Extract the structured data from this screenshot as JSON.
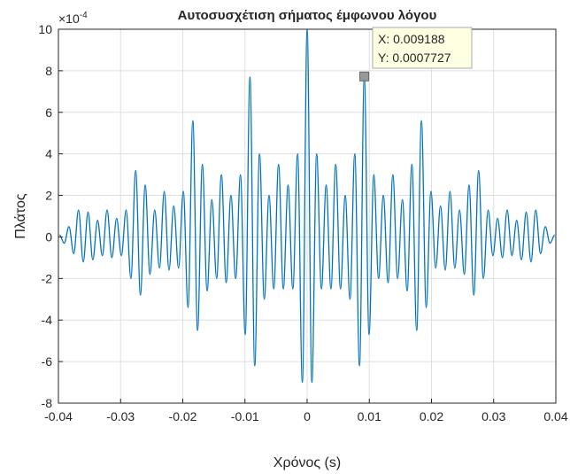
{
  "chart_data": {
    "type": "line",
    "title": "Αυτοσυσχέτιση σήματος έμφωνου λόγου",
    "x_label": "Χρόνος (s)",
    "y_label": "Πλάτος",
    "y_multiplier": "×10",
    "y_exponent": "-4",
    "xlim": [
      -0.04,
      0.04
    ],
    "ylim": [
      -8,
      10
    ],
    "xticks": [
      -0.04,
      -0.03,
      -0.02,
      -0.01,
      0,
      0.01,
      0.02,
      0.03,
      0.04
    ],
    "yticks": [
      -8,
      -6,
      -4,
      -2,
      0,
      2,
      4,
      6,
      8,
      10
    ],
    "grid": true,
    "x": [
      -0.039832,
      -0.039066,
      -0.0383,
      -0.037534,
      -0.036768,
      -0.036002,
      -0.035236,
      -0.03447,
      -0.033704,
      -0.032938,
      -0.032172,
      -0.031406,
      -0.03064,
      -0.029874,
      -0.029108,
      -0.028342,
      -0.027576,
      -0.02681,
      -0.026044,
      -0.025278,
      -0.024512,
      -0.023746,
      -0.02298,
      -0.022214,
      -0.021448,
      -0.020682,
      -0.019916,
      -0.01915,
      -0.018384,
      -0.017618,
      -0.016852,
      -0.016086,
      -0.01532,
      -0.014554,
      -0.013788,
      -0.013022,
      -0.012256,
      -0.01149,
      -0.010724,
      -0.009958,
      -0.009192,
      -0.008426,
      -0.00766,
      -0.006894,
      -0.006128,
      -0.005362,
      -0.004596,
      -0.00383,
      -0.003064,
      -0.002298,
      -0.001532,
      -0.000766,
      0,
      0.000766,
      0.001532,
      0.002298,
      0.003064,
      0.00383,
      0.004596,
      0.005362,
      0.006128,
      0.006894,
      0.00766,
      0.008426,
      0.009192,
      0.009958,
      0.010724,
      0.01149,
      0.012256,
      0.013022,
      0.013788,
      0.014554,
      0.01532,
      0.016086,
      0.016852,
      0.017618,
      0.018384,
      0.01915,
      0.019916,
      0.020682,
      0.021448,
      0.022214,
      0.02298,
      0.023746,
      0.024512,
      0.025278,
      0.026044,
      0.02681,
      0.027576,
      0.028342,
      0.029108,
      0.029874,
      0.03064,
      0.031406,
      0.032172,
      0.032938,
      0.033704,
      0.03447,
      0.035236,
      0.036002,
      0.036768,
      0.037534,
      0.0383,
      0.039066,
      0.039832
    ],
    "series": [
      {
        "color": "#0072bd",
        "values": [
          0.1,
          -0.3,
          0.5,
          -0.8,
          1.3,
          -1.2,
          1.2,
          -1.1,
          0.8,
          -0.9,
          1.3,
          -1,
          0.9,
          -0.9,
          1.3,
          -2,
          3.2,
          -2.8,
          2.5,
          -1.8,
          1.3,
          -1.5,
          2.2,
          -1.6,
          1.5,
          -1.5,
          2.2,
          -3.4,
          5.6,
          -4.5,
          3.5,
          -2.6,
          1.8,
          -2,
          3,
          -2.2,
          2,
          -2,
          3,
          -4.7,
          7.7,
          -6.2,
          4,
          -3,
          2,
          -2.5,
          3.5,
          -2.5,
          2.5,
          -2.5,
          4,
          -7,
          10,
          -7,
          4,
          -2.5,
          2.5,
          -2.5,
          3.5,
          -2.5,
          2,
          -3,
          4,
          -6.2,
          7.7,
          -4.7,
          3,
          -2,
          2,
          -2.2,
          3,
          -2,
          1.8,
          -2.6,
          3.5,
          -4.5,
          5.6,
          -3.4,
          2.2,
          -1.5,
          1.5,
          -1.6,
          2.2,
          -1.5,
          1.3,
          -1.8,
          2.5,
          -2.8,
          3.2,
          -2,
          1.3,
          -0.9,
          0.9,
          -1,
          1.3,
          -0.9,
          0.8,
          -1.1,
          1.2,
          -1.2,
          1.3,
          -0.8,
          0.5,
          -0.3,
          0.1
        ]
      }
    ],
    "datatip": {
      "x": 0.009188,
      "y": 7.727,
      "label_x": "X: 0.009188",
      "label_y": "Y: 0.0007727"
    }
  }
}
